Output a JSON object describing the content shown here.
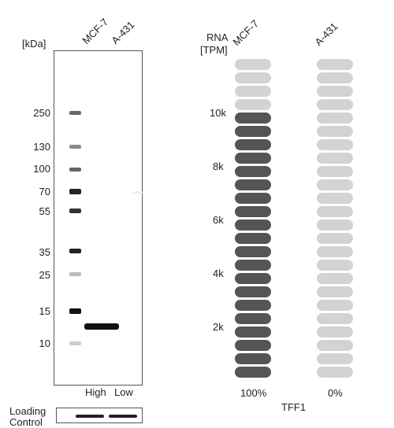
{
  "western_blot": {
    "unit_label": "[kDa]",
    "lanes": [
      "MCF-7",
      "A-431"
    ],
    "markers": [
      "250",
      "130",
      "100",
      "70",
      "55",
      "35",
      "25",
      "15",
      "10"
    ],
    "expression_labels": [
      "High",
      "Low"
    ],
    "loading_control_line1": "Loading",
    "loading_control_line2": "Control"
  },
  "rna": {
    "title_line1": "RNA",
    "title_line2": "[TPM]",
    "cell_lines": [
      "MCF-7",
      "A-431"
    ],
    "y_ticks": [
      "10k",
      "8k",
      "6k",
      "4k",
      "2k"
    ],
    "mcf7_filled_units": 20,
    "a431_filled_units": 0,
    "total_units": 24,
    "percent_labels": [
      "100%",
      "0%"
    ],
    "gene": "TFF1",
    "colors": {
      "filled": "#555555",
      "empty": "#d3d3d3"
    }
  }
}
